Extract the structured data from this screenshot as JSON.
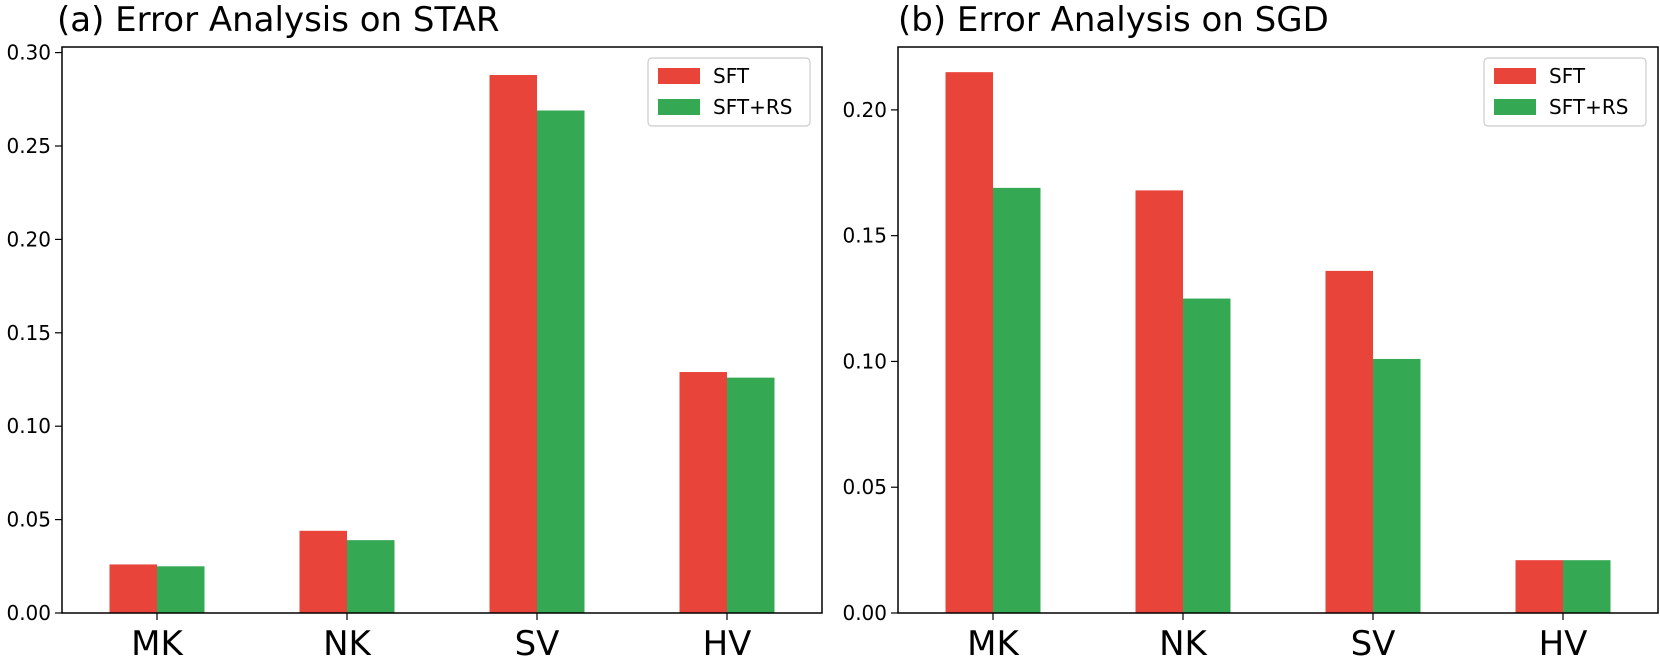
{
  "colors": {
    "SFT": "#e8443a",
    "SFT+RS": "#35a853",
    "axis": "#000000",
    "legend_border": "#cccccc"
  },
  "chart_data": [
    {
      "type": "bar",
      "title": "(a) Error Analysis on STAR",
      "categories": [
        "MK",
        "NK",
        "SV",
        "HV"
      ],
      "series": [
        {
          "name": "SFT",
          "values": [
            0.026,
            0.044,
            0.288,
            0.129
          ]
        },
        {
          "name": "SFT+RS",
          "values": [
            0.025,
            0.039,
            0.269,
            0.126
          ]
        }
      ],
      "ylim": [
        0,
        0.303
      ],
      "yticks": [
        "0.00",
        "0.05",
        "0.10",
        "0.15",
        "0.20",
        "0.25",
        "0.30"
      ],
      "xlabel": "",
      "ylabel": "",
      "grid": false,
      "legend": "top-right"
    },
    {
      "type": "bar",
      "title": "(b) Error Analysis on SGD",
      "categories": [
        "MK",
        "NK",
        "SV",
        "HV"
      ],
      "series": [
        {
          "name": "SFT",
          "values": [
            0.215,
            0.168,
            0.136,
            0.021
          ]
        },
        {
          "name": "SFT+RS",
          "values": [
            0.169,
            0.125,
            0.101,
            0.021
          ]
        }
      ],
      "ylim": [
        0,
        0.225
      ],
      "yticks": [
        "0.00",
        "0.05",
        "0.10",
        "0.15",
        "0.20"
      ],
      "xlabel": "",
      "ylabel": "",
      "grid": false,
      "legend": "top-right"
    }
  ]
}
